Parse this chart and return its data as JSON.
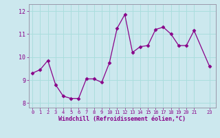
{
  "x": [
    0,
    1,
    2,
    3,
    4,
    5,
    6,
    7,
    8,
    9,
    10,
    11,
    12,
    13,
    14,
    15,
    16,
    17,
    18,
    19,
    20,
    21,
    23
  ],
  "y": [
    9.3,
    9.45,
    9.85,
    8.8,
    8.3,
    8.2,
    8.2,
    9.05,
    9.05,
    8.9,
    9.75,
    11.25,
    11.85,
    10.2,
    10.45,
    10.5,
    11.2,
    11.3,
    11.0,
    10.5,
    10.5,
    11.15,
    9.6
  ],
  "line_color": "#880088",
  "marker": "D",
  "marker_size": 2.5,
  "bg_color": "#cce8ee",
  "grid_color": "#aadddd",
  "xlabel": "Windchill (Refroidissement éolien,°C)",
  "xlabel_color": "#880088",
  "tick_color": "#880088",
  "label_color": "#880088",
  "ylim": [
    7.8,
    12.3
  ],
  "xlim": [
    -0.5,
    23.8
  ],
  "yticks": [
    8,
    9,
    10,
    11,
    12
  ],
  "xticks": [
    0,
    1,
    2,
    3,
    4,
    5,
    6,
    7,
    8,
    9,
    10,
    11,
    12,
    13,
    14,
    15,
    16,
    17,
    18,
    19,
    20,
    21,
    23
  ],
  "spine_color": "#9999aa"
}
